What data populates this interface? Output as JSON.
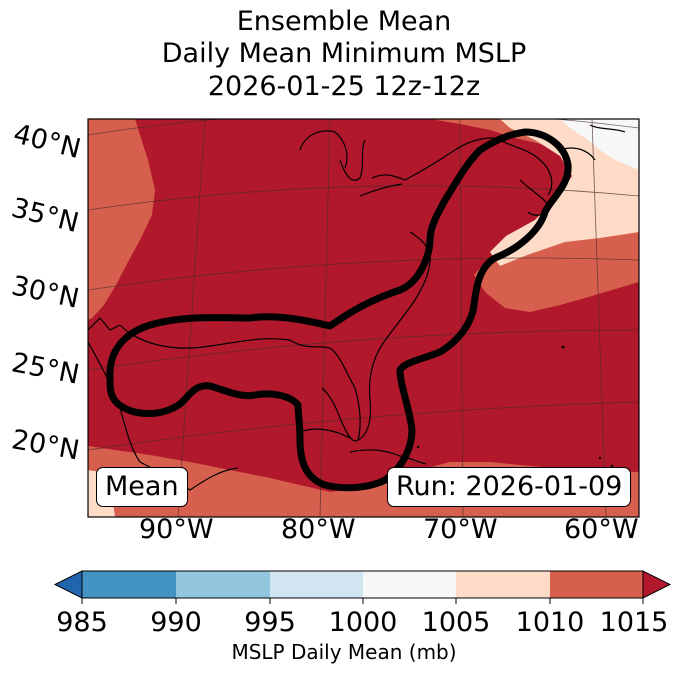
{
  "title": {
    "line1": "Ensemble Mean",
    "line2": "Daily Mean Minimum MSLP",
    "line3": "2026-01-25 12z-12z"
  },
  "map": {
    "lat_labels": [
      "40°N",
      "35°N",
      "30°N",
      "25°N",
      "20°N"
    ],
    "lon_labels": [
      "90°W",
      "80°W",
      "70°W",
      "60°W"
    ],
    "panel_left": "Mean",
    "panel_right": "Run: 2026-01-09"
  },
  "colorbar": {
    "ticks": [
      "985",
      "990",
      "995",
      "1000",
      "1005",
      "1010",
      "1015"
    ],
    "label": "MSLP Daily Mean (mb)",
    "colors": {
      "under": "#2166ac",
      "c985_990": "#4393c3",
      "c990_995": "#92c5de",
      "c995_1000": "#d1e5f0",
      "c1000_1005": "#f7f7f7",
      "c1005_1010": "#fddbc7",
      "c1010_1015": "#d6604d",
      "over": "#b2182b"
    }
  }
}
